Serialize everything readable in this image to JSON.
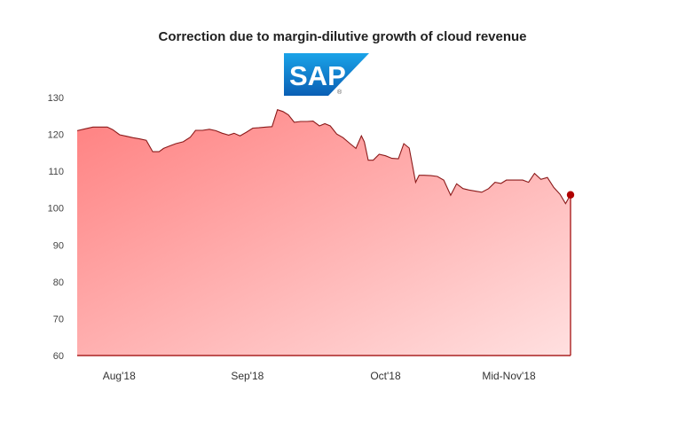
{
  "chart_data": {
    "type": "area",
    "title": "Correction due to margin-dilutive growth of cloud revenue",
    "logo_text": "SAP",
    "xlabel": "",
    "ylabel": "",
    "ylim": [
      60,
      130
    ],
    "y_ticks": [
      60,
      70,
      80,
      90,
      100,
      110,
      120,
      130
    ],
    "x_range": [
      0,
      100
    ],
    "x_ticks": [
      {
        "label": "Aug'18",
        "x": 8.5
      },
      {
        "label": "Sep'18",
        "x": 34.5
      },
      {
        "label": "Oct'18",
        "x": 62.5
      },
      {
        "label": "Mid-Nov'18",
        "x": 87.5
      }
    ],
    "series": [
      {
        "name": "SAP",
        "x": [
          0,
          1.6,
          3.2,
          4.8,
          6.1,
          7.2,
          8.6,
          10.0,
          11.3,
          12.6,
          14.0,
          15.3,
          16.6,
          17.5,
          18.8,
          20.0,
          21.5,
          22.9,
          24.0,
          25.4,
          26.8,
          28.1,
          29.4,
          30.7,
          31.8,
          33.0,
          34.3,
          35.6,
          36.8,
          38.3,
          39.5,
          40.6,
          41.7,
          42.8,
          44.0,
          45.3,
          46.6,
          47.8,
          49.1,
          50.2,
          51.3,
          52.6,
          53.9,
          55.2,
          56.5,
          57.6,
          58.2,
          59.0,
          60.0,
          61.2,
          62.5,
          63.8,
          65.1,
          66.2,
          67.3,
          68.6,
          69.3,
          70.3,
          71.7,
          73.0,
          74.3,
          75.7,
          76.9,
          78.2,
          79.4,
          80.7,
          82.0,
          83.4,
          84.7,
          85.9,
          87.0,
          88.0,
          89.1,
          90.3,
          91.5,
          92.7,
          94.0,
          95.3,
          96.6,
          97.9,
          99.0,
          100
        ],
        "values": [
          121.0,
          121.5,
          122.0,
          122.0,
          122.0,
          121.3,
          119.9,
          119.5,
          119.1,
          118.8,
          118.4,
          115.3,
          115.3,
          116.2,
          116.9,
          117.5,
          118.0,
          119.2,
          121.1,
          121.1,
          121.4,
          121.0,
          120.3,
          119.8,
          120.3,
          119.6,
          120.6,
          121.7,
          121.8,
          122.0,
          122.1,
          126.7,
          126.2,
          125.3,
          123.3,
          123.5,
          123.5,
          123.6,
          122.3,
          122.9,
          122.3,
          120.1,
          119.1,
          117.6,
          116.2,
          119.6,
          118.0,
          113.0,
          113.0,
          114.6,
          114.2,
          113.5,
          113.4,
          117.5,
          116.3,
          107.0,
          108.9,
          108.9,
          108.8,
          108.6,
          107.6,
          103.5,
          106.6,
          105.3,
          104.9,
          104.6,
          104.3,
          105.3,
          107.0,
          106.7,
          107.6,
          107.6,
          107.6,
          107.6,
          107.0,
          109.4,
          107.8,
          108.3,
          105.6,
          103.7,
          101.2,
          103.6
        ]
      }
    ],
    "last_marker": {
      "x": 100,
      "value": 103.6
    },
    "colors": {
      "line": "#8b1a1a",
      "fill_top": "#ff8080",
      "fill_bottom": "#ffe0e0",
      "marker": "#b00000",
      "axis": "#aa2222"
    }
  }
}
